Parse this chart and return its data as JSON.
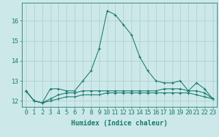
{
  "title": "",
  "xlabel": "Humidex (Indice chaleur)",
  "ylabel": "",
  "bg_color": "#cce8e8",
  "grid_color": "#aacccc",
  "line_color": "#1a7a6e",
  "x_values": [
    0,
    1,
    2,
    3,
    4,
    5,
    6,
    7,
    8,
    9,
    10,
    11,
    12,
    13,
    14,
    15,
    16,
    17,
    18,
    19,
    20,
    21,
    22,
    23
  ],
  "series1": [
    12.5,
    12.0,
    11.9,
    12.6,
    12.6,
    12.5,
    12.5,
    13.0,
    13.5,
    14.6,
    16.5,
    16.3,
    15.8,
    15.3,
    14.2,
    13.5,
    13.0,
    12.9,
    12.9,
    13.0,
    12.5,
    12.9,
    12.6,
    12.1
  ],
  "series2": [
    12.5,
    12.0,
    11.9,
    12.1,
    12.3,
    12.4,
    12.4,
    12.5,
    12.5,
    12.5,
    12.5,
    12.5,
    12.5,
    12.5,
    12.5,
    12.5,
    12.5,
    12.6,
    12.6,
    12.6,
    12.5,
    12.5,
    12.4,
    12.1
  ],
  "series3": [
    12.5,
    12.0,
    11.9,
    12.0,
    12.1,
    12.2,
    12.2,
    12.3,
    12.3,
    12.3,
    12.4,
    12.4,
    12.4,
    12.4,
    12.4,
    12.4,
    12.4,
    12.4,
    12.4,
    12.4,
    12.4,
    12.3,
    12.2,
    12.1
  ],
  "ylim": [
    11.7,
    16.9
  ],
  "yticks": [
    12,
    13,
    14,
    15,
    16
  ],
  "xticks": [
    0,
    1,
    2,
    3,
    4,
    5,
    6,
    7,
    8,
    9,
    10,
    11,
    12,
    13,
    14,
    15,
    16,
    17,
    18,
    19,
    20,
    21,
    22,
    23
  ],
  "font_size": 6.5,
  "marker": "+"
}
